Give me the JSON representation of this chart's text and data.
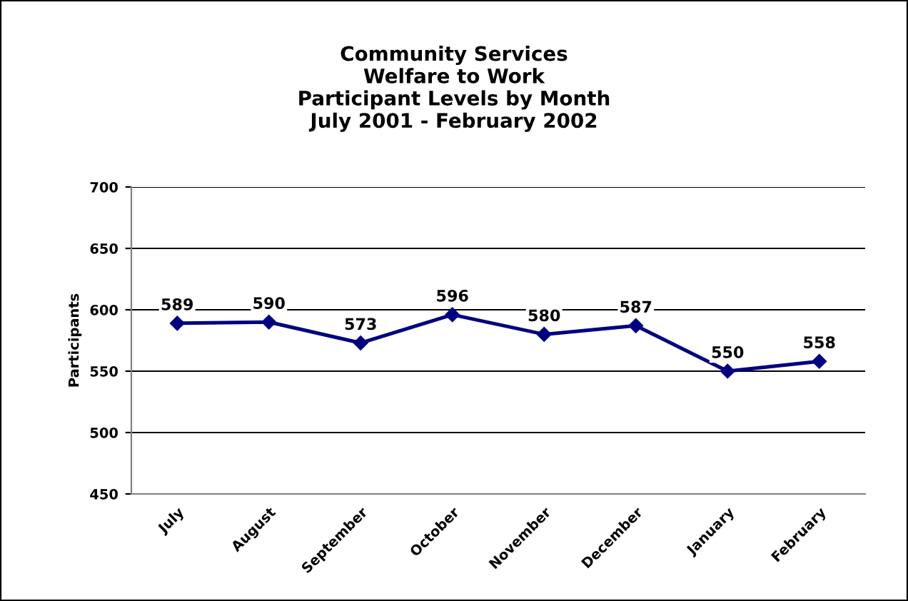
{
  "chart_data": {
    "type": "line",
    "title": "Community Services\nWelfare to Work\nParticipant Levels by Month\nJuly 2001 - February 2002",
    "ylabel": "Participants",
    "categories": [
      "July",
      "August",
      "September",
      "October",
      "November",
      "December",
      "January",
      "February"
    ],
    "series": [
      {
        "color": "#000080",
        "values": [
          589,
          590,
          573,
          596,
          580,
          587,
          550,
          558
        ]
      }
    ],
    "ylim": [
      450,
      700
    ],
    "yticks": [
      450,
      500,
      550,
      600,
      650,
      700
    ],
    "grid": "y",
    "marker": "diamond",
    "line_style": "solid",
    "data_labels": true
  }
}
